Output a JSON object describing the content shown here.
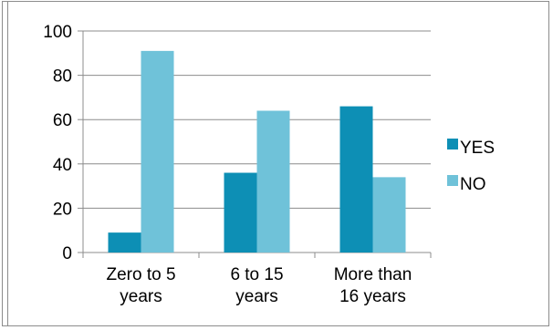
{
  "chart_data": {
    "type": "bar",
    "categories": [
      [
        "Zero to 5",
        "years"
      ],
      [
        "6 to 15",
        "years"
      ],
      [
        "More than",
        "16 years"
      ]
    ],
    "series": [
      {
        "name": "YES",
        "color": "#0d8fb5",
        "values": [
          9,
          36,
          66
        ]
      },
      {
        "name": "NO",
        "color": "#6fc2d9",
        "values": [
          91,
          64,
          34
        ]
      }
    ],
    "ylim": [
      0,
      100
    ],
    "yticks": [
      0,
      20,
      40,
      60,
      80,
      100
    ],
    "grid": true,
    "legend": "right",
    "title": "",
    "xlabel": "",
    "ylabel": ""
  }
}
